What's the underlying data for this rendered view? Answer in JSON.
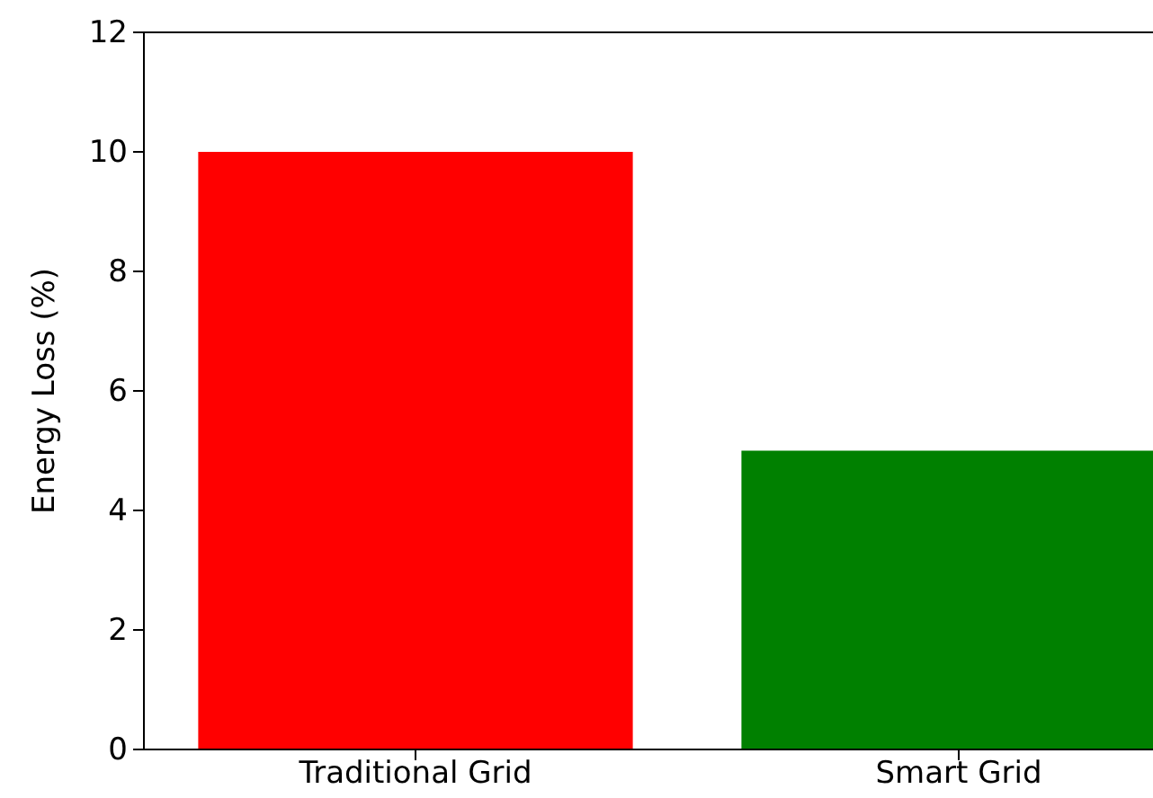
{
  "chart_data": {
    "type": "bar",
    "ylabel": "Energy Loss (%)",
    "categories": [
      "Traditional Grid",
      "Smart Grid"
    ],
    "values": [
      10,
      5
    ],
    "colors": [
      "#ff0000",
      "#008000"
    ],
    "ylim": [
      0,
      12
    ],
    "yticks": [
      0,
      2,
      4,
      6,
      8,
      10,
      12
    ],
    "grid": false
  }
}
